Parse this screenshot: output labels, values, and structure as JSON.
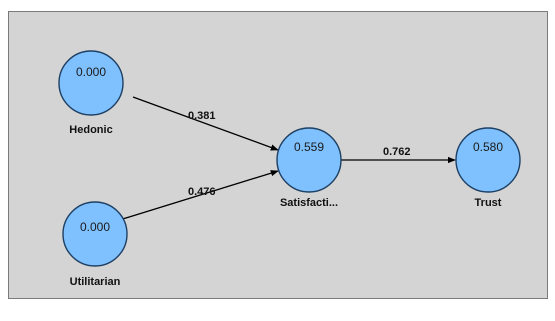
{
  "diagram": {
    "nodes": [
      {
        "id": "hedonic",
        "label": "Hedonic",
        "value": "0.000",
        "fill": "#7fc1ff"
      },
      {
        "id": "utilitarian",
        "label": "Utilitarian",
        "value": "0.000",
        "fill": "#7fc1ff"
      },
      {
        "id": "satisfaction",
        "label": "Satisfacti...",
        "value": "0.559",
        "fill": "#7fc1ff"
      },
      {
        "id": "trust",
        "label": "Trust",
        "value": "0.580",
        "fill": "#7fc1ff"
      }
    ],
    "paths": [
      {
        "from": "hedonic",
        "to": "satisfaction",
        "coefficient": "0.381"
      },
      {
        "from": "utilitarian",
        "to": "satisfaction",
        "coefficient": "0.476"
      },
      {
        "from": "satisfaction",
        "to": "trust",
        "coefficient": "0.762"
      }
    ]
  }
}
